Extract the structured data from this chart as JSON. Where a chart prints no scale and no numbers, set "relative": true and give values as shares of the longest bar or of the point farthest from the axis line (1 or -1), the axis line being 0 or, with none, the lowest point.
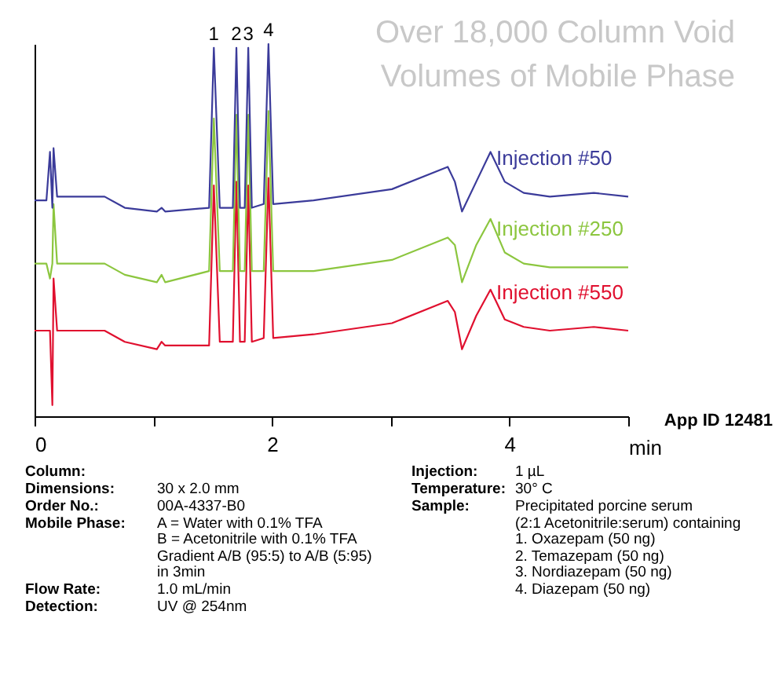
{
  "chart_data": {
    "type": "line",
    "title": "Over 18,000 Column Void Volumes of Mobile Phase",
    "xlabel": "min",
    "relative": true,
    "xlim": [
      0,
      5
    ],
    "xticks": [
      0,
      {
        "value": 1,
        "label": null
      },
      2,
      {
        "value": 3,
        "label": null
      },
      4,
      {
        "value": 5,
        "label": null
      }
    ],
    "grid": false,
    "marker": "none",
    "line_style": "solid",
    "x": [
      0.0,
      0.1,
      0.13,
      0.15,
      0.16,
      0.19,
      0.59,
      0.76,
      1.03,
      1.07,
      1.1,
      1.47,
      1.51,
      1.56,
      1.67,
      1.7,
      1.73,
      1.77,
      1.8,
      1.83,
      1.93,
      1.97,
      2.01,
      2.35,
      3.01,
      3.48,
      3.54,
      3.6,
      3.72,
      3.84,
      3.96,
      4.12,
      4.34,
      4.71,
      5.0
    ],
    "series": [
      {
        "name": "Injection #50",
        "color": "#3b3b9a",
        "values": [
          0.58,
          0.58,
          0.71,
          0.56,
          0.72,
          0.59,
          0.59,
          0.56,
          0.55,
          0.56,
          0.55,
          0.56,
          0.99,
          0.56,
          0.56,
          0.99,
          0.56,
          0.56,
          0.99,
          0.56,
          0.57,
          1.0,
          0.57,
          0.58,
          0.61,
          0.67,
          0.63,
          0.55,
          0.63,
          0.71,
          0.63,
          0.6,
          0.59,
          0.6,
          0.59
        ]
      },
      {
        "name": "Injection #250",
        "color": "#8cc63f",
        "values": [
          0.41,
          0.41,
          0.37,
          0.41,
          0.57,
          0.41,
          0.41,
          0.38,
          0.36,
          0.38,
          0.36,
          0.39,
          0.8,
          0.39,
          0.39,
          0.81,
          0.39,
          0.39,
          0.81,
          0.39,
          0.39,
          0.82,
          0.39,
          0.39,
          0.42,
          0.48,
          0.46,
          0.36,
          0.46,
          0.53,
          0.44,
          0.41,
          0.4,
          0.4,
          0.4
        ]
      },
      {
        "name": "Injection #550",
        "color": "#e0102f",
        "values": [
          0.23,
          0.23,
          0.23,
          0.03,
          0.37,
          0.23,
          0.23,
          0.2,
          0.18,
          0.2,
          0.19,
          0.19,
          0.62,
          0.2,
          0.2,
          0.63,
          0.2,
          0.2,
          0.62,
          0.2,
          0.21,
          0.64,
          0.21,
          0.22,
          0.25,
          0.31,
          0.28,
          0.18,
          0.27,
          0.34,
          0.26,
          0.24,
          0.23,
          0.24,
          0.23
        ]
      }
    ],
    "annotations": [
      {
        "text": "1",
        "x": 1.51,
        "y": 0.99
      },
      {
        "text": "2",
        "x": 1.7,
        "y": 0.99
      },
      {
        "text": "3",
        "x": 1.8,
        "y": 0.99
      },
      {
        "text": "4",
        "x": 1.97,
        "y": 1.0
      },
      "App ID 12481",
      "Column:",
      "Dimensions:",
      "30 x 2.0 mm",
      "Order No.:",
      "00A-4337-B0",
      "Mobile Phase:",
      "A = Water with 0.1% TFA",
      "B = Acetonitrile with 0.1% TFA",
      "Gradient A/B (95:5) to A/B (5:95)",
      "in 3min",
      "Flow Rate:",
      "1.0 mL/min",
      "Detection:",
      "UV @ 254nm",
      "Injection:",
      "1 µL",
      "Temperature:",
      "30° C",
      "Sample:",
      "Precipitated porcine serum",
      "(2:1 Acetonitrile:serum) containing",
      "1.  Oxazepam (50 ng)",
      "2.  Temazepam (50 ng)",
      "3.  Nordiazepam (50 ng)",
      "4.  Diazepam (50 ng)"
    ]
  }
}
